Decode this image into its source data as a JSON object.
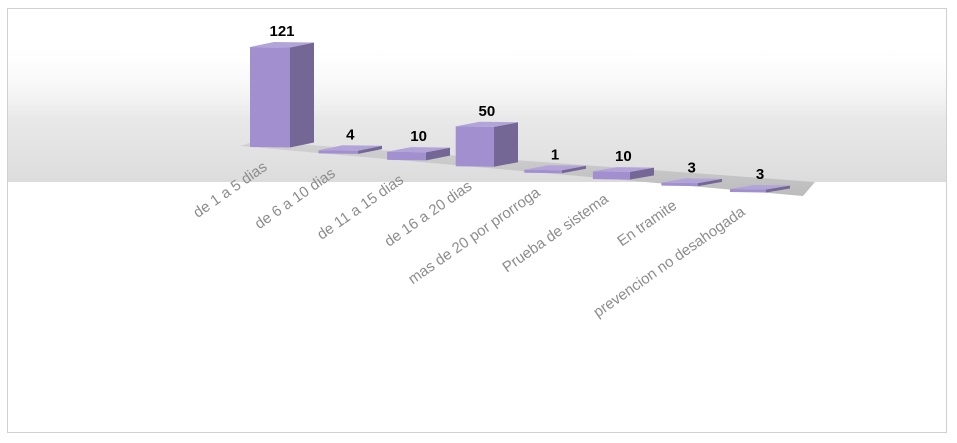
{
  "chart_data": {
    "type": "bar",
    "categories": [
      "de 1 a 5 dias",
      "de 6 a 10 dias",
      "de 11 a 15 dias",
      "de 16 a 20 dias",
      "mas de 20 por prorroga",
      "Prueba de sistema",
      "En tramite",
      "prevencion no desahogada"
    ],
    "values": [
      121,
      4,
      10,
      50,
      1,
      10,
      3,
      3
    ],
    "title": "",
    "xlabel": "",
    "ylabel": "",
    "ylim": [
      0,
      121
    ],
    "bar_color": "#a18fd0",
    "grid": false,
    "legend": "none",
    "style": "3d-perspective"
  }
}
